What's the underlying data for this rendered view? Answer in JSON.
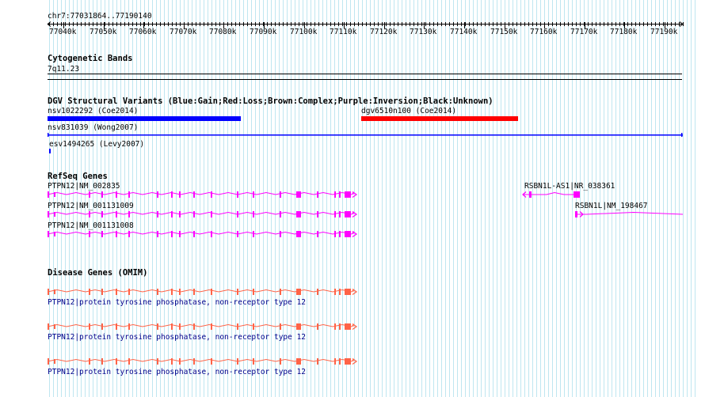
{
  "ruler": {
    "coords": "chr7:77031864..77190140",
    "ticks": [
      "77040k",
      "77050k",
      "77060k",
      "77070k",
      "77080k",
      "77090k",
      "77100k",
      "77110k",
      "77120k",
      "77130k",
      "77140k",
      "77150k",
      "77160k",
      "77170k",
      "77180k",
      "77190k"
    ]
  },
  "tracks": {
    "cytoband": {
      "title": "Cytogenetic Bands",
      "band": "7q11.23"
    },
    "dgv": {
      "title": "DGV Structural Variants (Blue:Gain;Red:Loss;Brown:Complex;Purple:Inversion;Black:Unknown)",
      "features": [
        {
          "label": "nsv1022292 (Coe2014)",
          "color": "#0000ff"
        },
        {
          "label": "dgv6510n100 (Coe2014)",
          "color": "#ff0000"
        },
        {
          "label": "nsv831039 (Wong2007)",
          "color": "#0000ff"
        },
        {
          "label": "esv1494265 (Levy2007)",
          "color": "#0000ff"
        }
      ]
    },
    "refseq": {
      "title": "RefSeq Genes",
      "color": "#ff00ff",
      "features": [
        {
          "label": "PTPN12|NM_002835"
        },
        {
          "label": "PTPN12|NM_001131009"
        },
        {
          "label": "PTPN12|NM_001131008"
        },
        {
          "label": "RSBN1L-AS1|NR_038361"
        },
        {
          "label": "RSBN1L|NM_198467"
        }
      ]
    },
    "omim": {
      "title": "Disease Genes (OMIM)",
      "color": "#ff6347",
      "features": [
        {
          "label": "PTPN12|protein tyrosine phosphatase, non-receptor type 12"
        },
        {
          "label": "PTPN12|protein tyrosine phosphatase, non-receptor type 12"
        },
        {
          "label": "PTPN12|protein tyrosine phosphatase, non-receptor type 12"
        }
      ]
    }
  }
}
